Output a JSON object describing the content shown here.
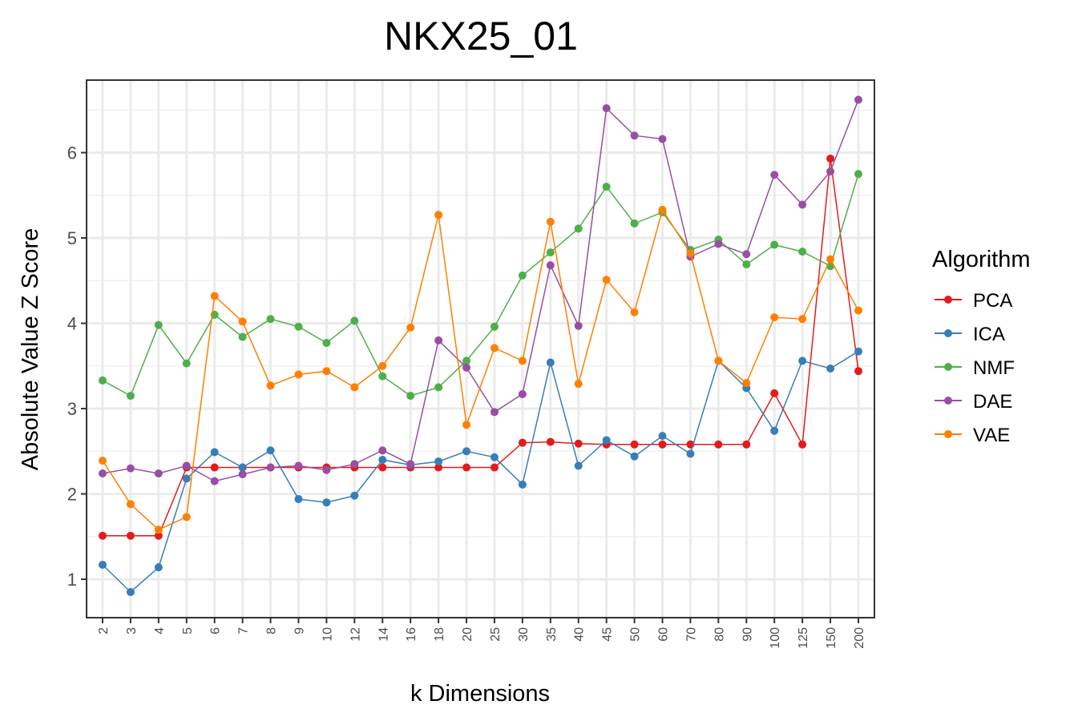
{
  "chart_data": {
    "type": "line",
    "title": "NKX25_01",
    "xlabel": "k Dimensions",
    "ylabel": "Absolute Value Z Score",
    "categories": [
      "2",
      "3",
      "4",
      "5",
      "6",
      "7",
      "8",
      "9",
      "10",
      "12",
      "14",
      "16",
      "18",
      "20",
      "25",
      "30",
      "35",
      "40",
      "45",
      "50",
      "60",
      "70",
      "80",
      "90",
      "100",
      "125",
      "150",
      "200"
    ],
    "ylim": [
      0.55,
      6.85
    ],
    "yticks": [
      1,
      2,
      3,
      4,
      5,
      6
    ],
    "grid": true,
    "legend": {
      "title": "Algorithm",
      "position": "right"
    },
    "series": [
      {
        "name": "PCA",
        "color": "#e41a1c",
        "values": [
          1.51,
          1.51,
          1.51,
          2.31,
          2.31,
          2.31,
          2.31,
          2.31,
          2.31,
          2.31,
          2.31,
          2.31,
          2.31,
          2.31,
          2.31,
          2.6,
          2.61,
          2.59,
          2.58,
          2.58,
          2.58,
          2.58,
          2.58,
          2.58,
          3.18,
          2.58,
          5.93,
          3.44
        ]
      },
      {
        "name": "ICA",
        "color": "#377eb8",
        "values": [
          1.17,
          0.85,
          1.14,
          2.18,
          2.49,
          2.31,
          2.51,
          1.94,
          1.9,
          1.98,
          2.4,
          2.34,
          2.38,
          2.5,
          2.43,
          2.11,
          3.54,
          2.33,
          2.63,
          2.44,
          2.68,
          2.47,
          3.56,
          3.24,
          2.74,
          3.56,
          3.47,
          3.67
        ]
      },
      {
        "name": "NMF",
        "color": "#4daf4a",
        "values": [
          3.33,
          3.15,
          3.98,
          3.53,
          4.1,
          3.84,
          4.05,
          3.96,
          3.77,
          4.03,
          3.38,
          3.15,
          3.25,
          3.56,
          3.96,
          4.56,
          4.83,
          5.11,
          5.6,
          5.17,
          5.3,
          4.86,
          4.98,
          4.69,
          4.92,
          4.84,
          4.67,
          5.75
        ]
      },
      {
        "name": "DAE",
        "color": "#984ea3",
        "values": [
          2.24,
          2.3,
          2.24,
          2.33,
          2.15,
          2.23,
          2.31,
          2.33,
          2.28,
          2.35,
          2.51,
          2.35,
          3.8,
          3.48,
          2.96,
          3.17,
          4.68,
          3.97,
          6.52,
          6.2,
          6.16,
          4.78,
          4.93,
          4.81,
          5.74,
          5.39,
          5.78,
          6.62
        ]
      },
      {
        "name": "VAE",
        "color": "#ff7f00",
        "values": [
          2.39,
          1.88,
          1.58,
          1.73,
          4.32,
          4.02,
          3.27,
          3.4,
          3.44,
          3.25,
          3.5,
          3.95,
          5.27,
          2.81,
          3.71,
          3.56,
          5.19,
          3.29,
          4.51,
          4.13,
          5.33,
          4.82,
          3.56,
          3.3,
          4.07,
          4.05,
          4.75,
          4.15
        ]
      }
    ]
  }
}
